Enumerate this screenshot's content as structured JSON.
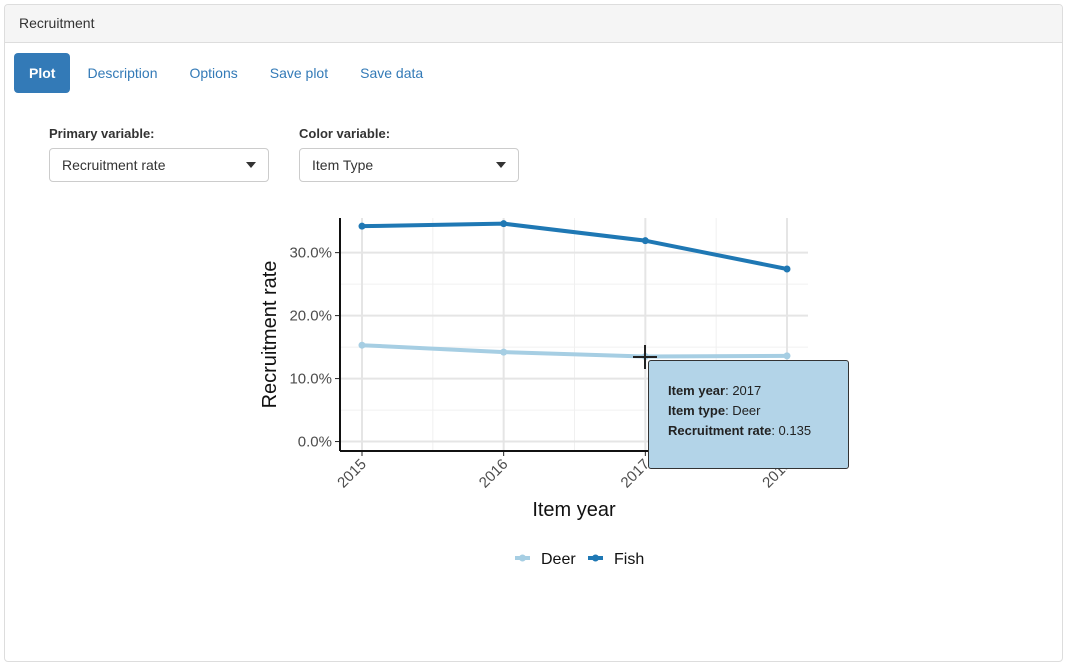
{
  "panel": {
    "title": "Recruitment"
  },
  "tabs": [
    {
      "label": "Plot",
      "active": true
    },
    {
      "label": "Description"
    },
    {
      "label": "Options"
    },
    {
      "label": "Save plot"
    },
    {
      "label": "Save data"
    }
  ],
  "controls": {
    "primary": {
      "label": "Primary variable:",
      "value": "Recruitment rate"
    },
    "color": {
      "label": "Color variable:",
      "value": "Item Type"
    }
  },
  "chart_data": {
    "type": "line",
    "x": [
      2015,
      2016,
      2017,
      2018
    ],
    "xlabel": "Item year",
    "ylabel": "Recruitment rate",
    "ylim": [
      -0.015,
      0.355
    ],
    "yticks": [
      0.0,
      0.1,
      0.2,
      0.3
    ],
    "ytick_labels": [
      "0.0%",
      "10.0%",
      "20.0%",
      "30.0%"
    ],
    "xtick_labels": [
      "2015",
      "2016",
      "2017",
      "2018"
    ],
    "grid": true,
    "legend_position": "bottom",
    "series": [
      {
        "name": "Deer",
        "color": "#a6cee3",
        "values": [
          0.153,
          0.142,
          0.135,
          0.136
        ]
      },
      {
        "name": "Fish",
        "color": "#1f78b4",
        "values": [
          0.342,
          0.346,
          0.319,
          0.274
        ]
      }
    ]
  },
  "tooltip": {
    "year_label": "Item year",
    "year_value": ": 2017",
    "type_label": "Item type",
    "type_value": ": Deer",
    "rate_label": "Recruitment rate",
    "rate_value": ": 0.135"
  }
}
